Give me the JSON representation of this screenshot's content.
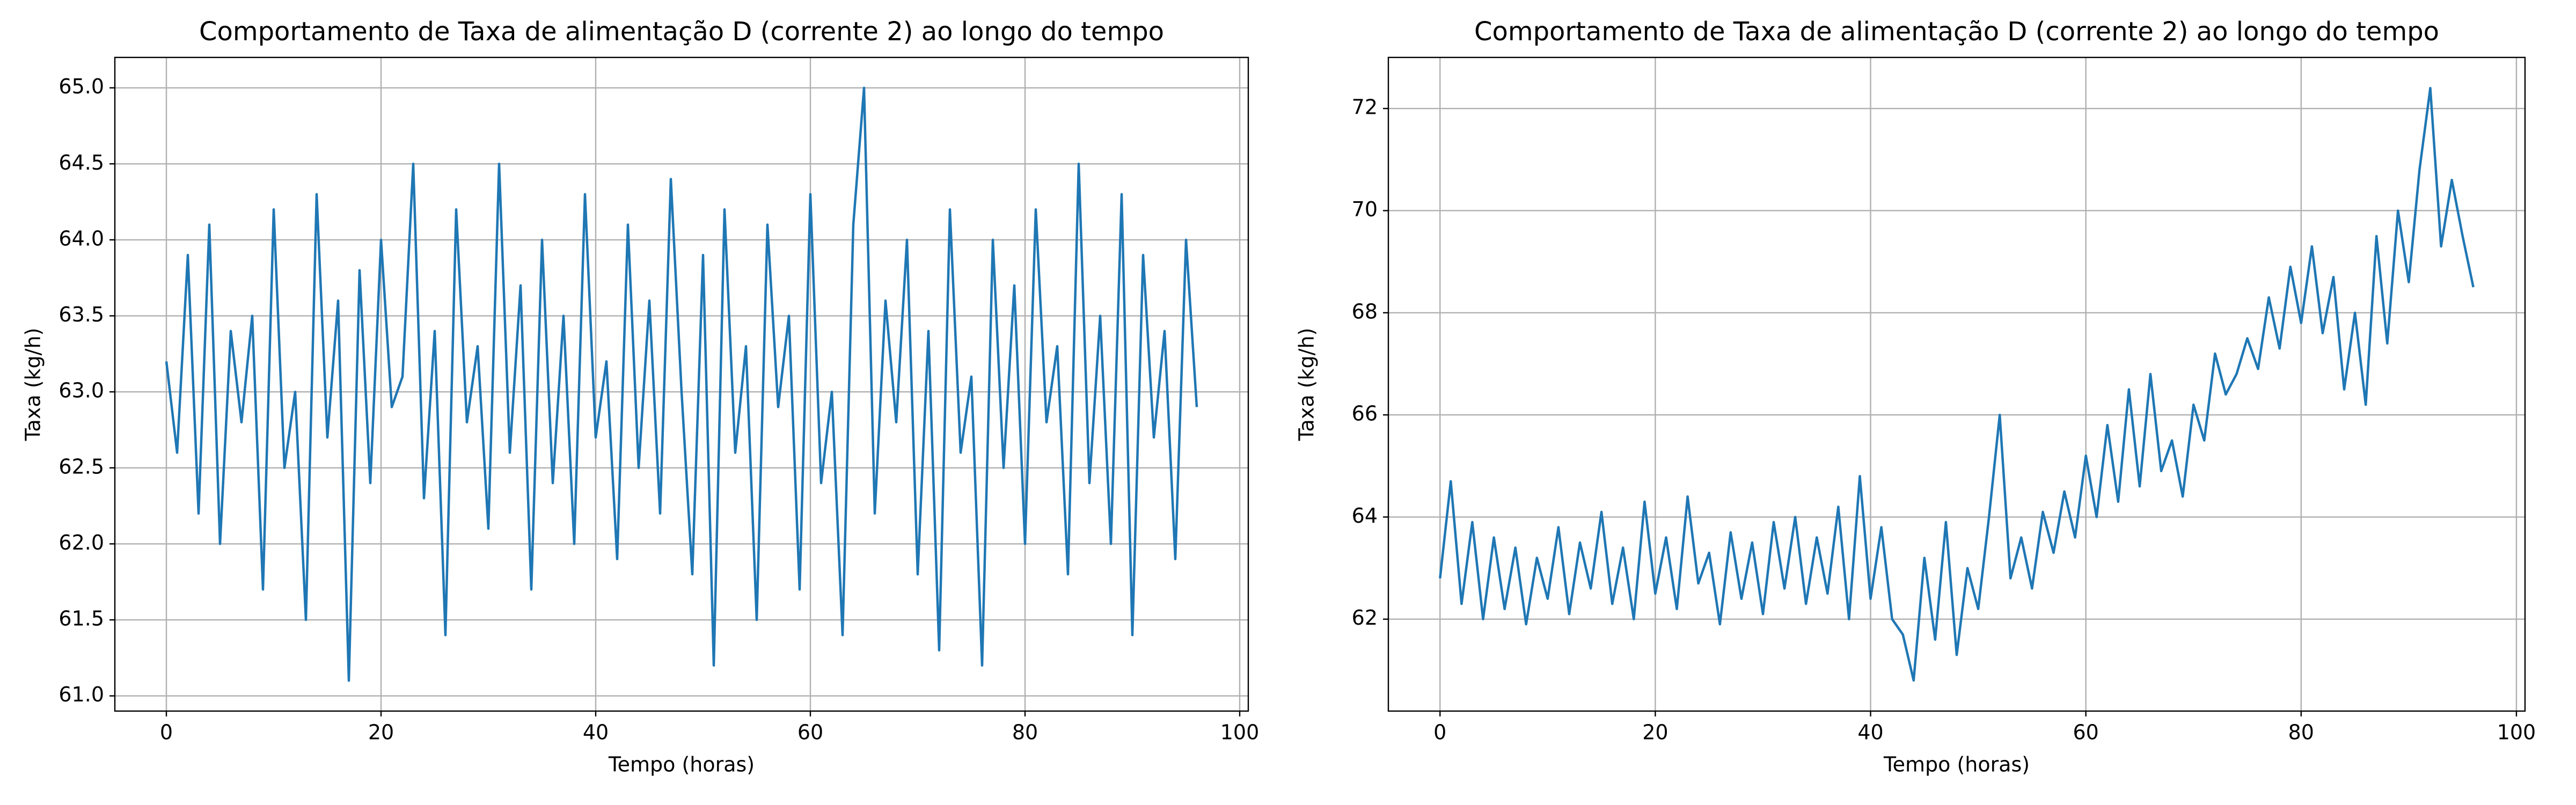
{
  "chart_data": [
    {
      "type": "line",
      "title": "Comportamento de Taxa de alimentação D (corrente 2) ao longo do tempo",
      "x_label": "Tempo (horas)",
      "y_label": "Taxa (kg/h)",
      "grid": true,
      "xlim": [
        -4.8,
        100.8
      ],
      "ylim": [
        60.9,
        65.2
      ],
      "xticks": [
        0,
        20,
        40,
        60,
        80,
        100
      ],
      "yticks": [
        {
          "value": 61,
          "label": "61.0"
        },
        {
          "value": 61.5,
          "label": "61.5"
        },
        {
          "value": 62,
          "label": "62.0"
        },
        {
          "value": 62.5,
          "label": "62.5"
        },
        {
          "value": 63,
          "label": "63.0"
        },
        {
          "value": 63.5,
          "label": "63.5"
        },
        {
          "value": 64,
          "label": "64.0"
        },
        {
          "value": 64.5,
          "label": "64.5"
        },
        {
          "value": 65,
          "label": "65.0"
        }
      ],
      "x": [
        0,
        1,
        2,
        3,
        4,
        5,
        6,
        7,
        8,
        9,
        10,
        11,
        12,
        13,
        14,
        15,
        16,
        17,
        18,
        19,
        20,
        21,
        22,
        23,
        24,
        25,
        26,
        27,
        28,
        29,
        30,
        31,
        32,
        33,
        34,
        35,
        36,
        37,
        38,
        39,
        40,
        41,
        42,
        43,
        44,
        45,
        46,
        47,
        48,
        49,
        50,
        51,
        52,
        53,
        54,
        55,
        56,
        57,
        58,
        59,
        60,
        61,
        62,
        63,
        64,
        65,
        66,
        67,
        68,
        69,
        70,
        71,
        72,
        73,
        74,
        75,
        76,
        77,
        78,
        79,
        80,
        81,
        82,
        83,
        84,
        85,
        86,
        87,
        88,
        89,
        90,
        91,
        92,
        93,
        94,
        95,
        96
      ],
      "series": [
        {
          "color": "#1f77b4",
          "values": [
            63.2,
            62.6,
            63.9,
            62.2,
            64.1,
            62.0,
            63.4,
            62.8,
            63.5,
            61.7,
            64.2,
            62.5,
            63.0,
            61.5,
            64.3,
            62.7,
            63.6,
            61.1,
            63.8,
            62.4,
            64.0,
            62.9,
            63.1,
            64.5,
            62.3,
            63.4,
            61.4,
            64.2,
            62.8,
            63.3,
            62.1,
            64.5,
            62.6,
            63.7,
            61.7,
            64.0,
            62.4,
            63.5,
            62.0,
            64.3,
            62.7,
            63.2,
            61.9,
            64.1,
            62.5,
            63.6,
            62.2,
            64.4,
            63.0,
            61.8,
            63.9,
            61.2,
            64.2,
            62.6,
            63.3,
            61.5,
            64.1,
            62.9,
            63.5,
            61.7,
            64.3,
            62.4,
            63.0,
            61.4,
            64.1,
            65.0,
            62.2,
            63.6,
            62.8,
            64.0,
            61.8,
            63.4,
            61.3,
            64.2,
            62.6,
            63.1,
            61.2,
            64.0,
            62.5,
            63.7,
            62.0,
            64.2,
            62.8,
            63.3,
            61.8,
            64.5,
            62.4,
            63.5,
            62.0,
            64.3,
            61.4,
            63.9,
            62.7,
            63.4,
            61.9,
            64.0,
            62.9
          ]
        }
      ]
    },
    {
      "type": "line",
      "title": "Comportamento de Taxa de alimentação D (corrente 2) ao longo do tempo",
      "x_label": "Tempo (horas)",
      "y_label": "Taxa (kg/h)",
      "grid": true,
      "xlim": [
        -4.8,
        100.8
      ],
      "ylim": [
        60.2,
        73.0
      ],
      "xticks": [
        0,
        20,
        40,
        60,
        80,
        100
      ],
      "yticks": [
        62,
        64,
        66,
        68,
        70,
        72
      ],
      "x": [
        0,
        1,
        2,
        3,
        4,
        5,
        6,
        7,
        8,
        9,
        10,
        11,
        12,
        13,
        14,
        15,
        16,
        17,
        18,
        19,
        20,
        21,
        22,
        23,
        24,
        25,
        26,
        27,
        28,
        29,
        30,
        31,
        32,
        33,
        34,
        35,
        36,
        37,
        38,
        39,
        40,
        41,
        42,
        43,
        44,
        45,
        46,
        47,
        48,
        49,
        50,
        51,
        52,
        53,
        54,
        55,
        56,
        57,
        58,
        59,
        60,
        61,
        62,
        63,
        64,
        65,
        66,
        67,
        68,
        69,
        70,
        71,
        72,
        73,
        74,
        75,
        76,
        77,
        78,
        79,
        80,
        81,
        82,
        83,
        84,
        85,
        86,
        87,
        88,
        89,
        90,
        91,
        92,
        93,
        94,
        95,
        96
      ],
      "series": [
        {
          "color": "#1f77b4",
          "values": [
            62.8,
            64.7,
            62.3,
            63.9,
            62.0,
            63.6,
            62.2,
            63.4,
            61.9,
            63.2,
            62.4,
            63.8,
            62.1,
            63.5,
            62.6,
            64.1,
            62.3,
            63.4,
            62.0,
            64.3,
            62.5,
            63.6,
            62.2,
            64.4,
            62.7,
            63.3,
            61.9,
            63.7,
            62.4,
            63.5,
            62.1,
            63.9,
            62.6,
            64.0,
            62.3,
            63.6,
            62.5,
            64.2,
            62.0,
            64.8,
            62.4,
            63.8,
            62.0,
            61.7,
            60.8,
            63.2,
            61.6,
            63.9,
            61.3,
            63.0,
            62.2,
            64.0,
            66.0,
            62.8,
            63.6,
            62.6,
            64.1,
            63.3,
            64.5,
            63.6,
            65.2,
            64.0,
            65.8,
            64.3,
            66.5,
            64.6,
            66.8,
            64.9,
            65.5,
            64.4,
            66.2,
            65.5,
            67.2,
            66.4,
            66.8,
            67.5,
            66.9,
            68.3,
            67.3,
            68.9,
            67.8,
            69.3,
            67.6,
            68.7,
            66.5,
            68.0,
            66.2,
            69.5,
            67.4,
            70.0,
            68.6,
            70.8,
            72.4,
            69.3,
            70.6,
            69.5,
            68.5
          ]
        }
      ]
    }
  ]
}
